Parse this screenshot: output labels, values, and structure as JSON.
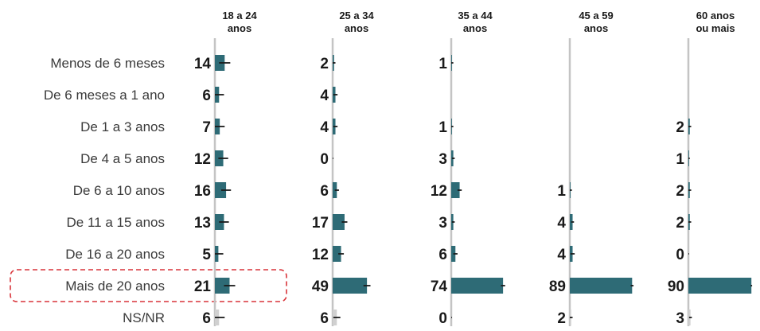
{
  "colors": {
    "bar": "#2e6b76",
    "bar_nsnr": "#d0d0d0",
    "axis": "#c4c4c4",
    "error": "#1a1a1a",
    "text": "#3a3a3a",
    "value": "#1a1a1a",
    "highlight": "#d9343a"
  },
  "chart_data": {
    "type": "bar",
    "orientation": "horizontal",
    "layout": "small-multiples",
    "categories": [
      "Menos de 6 meses",
      "De 6 meses a 1 ano",
      "De 1 a 3 anos",
      "De 4 a 5 anos",
      "De 6 a 10 anos",
      "De 11 a 15 anos",
      "De 16 a 20 anos",
      "Mais de 20 anos",
      "NS/NR"
    ],
    "highlighted_category": "Mais de 20 anos",
    "greyed_category": "NS/NR",
    "xlim": [
      0,
      100
    ],
    "error_bars": true,
    "series": [
      {
        "name": "18 a 24 anos",
        "values": [
          14,
          6,
          7,
          12,
          16,
          13,
          5,
          21,
          6
        ],
        "errors": [
          8,
          7,
          7,
          7,
          7,
          7,
          7,
          8,
          8
        ]
      },
      {
        "name": "25 a 34 anos",
        "values": [
          2,
          4,
          4,
          0,
          6,
          17,
          12,
          49,
          6
        ],
        "errors": [
          2,
          3,
          3,
          1,
          3,
          4,
          4,
          5,
          5
        ]
      },
      {
        "name": "35 a 44 anos",
        "values": [
          1,
          null,
          1,
          3,
          12,
          3,
          6,
          74,
          0
        ],
        "errors": [
          2,
          null,
          2,
          2,
          3,
          2,
          3,
          3,
          1
        ]
      },
      {
        "name": "45 a 59 anos",
        "values": [
          null,
          null,
          null,
          null,
          1,
          4,
          4,
          89,
          2
        ],
        "errors": [
          null,
          null,
          null,
          null,
          2,
          2,
          3,
          2,
          2
        ]
      },
      {
        "name": "60 anos ou mais",
        "values": [
          null,
          null,
          2,
          1,
          2,
          2,
          0,
          90,
          3
        ],
        "errors": [
          null,
          null,
          2,
          1,
          2,
          2,
          1,
          1,
          2
        ]
      }
    ]
  }
}
